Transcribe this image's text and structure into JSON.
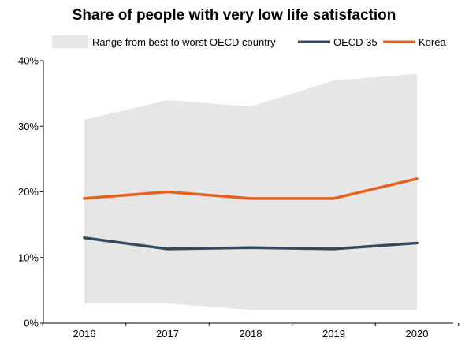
{
  "chart_data": {
    "type": "area",
    "title": "Share of people with very low life satisfaction",
    "xlabel": "",
    "ylabel": "",
    "categories": [
      "2016",
      "2017",
      "2018",
      "2019",
      "2020"
    ],
    "y_ticks": [
      "0%",
      "10%",
      "20%",
      "30%",
      "40%"
    ],
    "ylim": [
      0,
      40
    ],
    "y_unit": "%",
    "grid": false,
    "legend_position": "top",
    "range": {
      "name": "Range from best to worst OECD country",
      "low": [
        3,
        3,
        2,
        2,
        2
      ],
      "high": [
        31,
        34,
        33,
        37,
        38
      ],
      "color": "#e6e6e6"
    },
    "series": [
      {
        "name": "OECD 35",
        "values": [
          13.0,
          11.3,
          11.5,
          11.3,
          12.2
        ],
        "color": "#35495e"
      },
      {
        "name": "Korea",
        "values": [
          19,
          20,
          19,
          19,
          22
        ],
        "color": "#e8601c"
      }
    ]
  }
}
